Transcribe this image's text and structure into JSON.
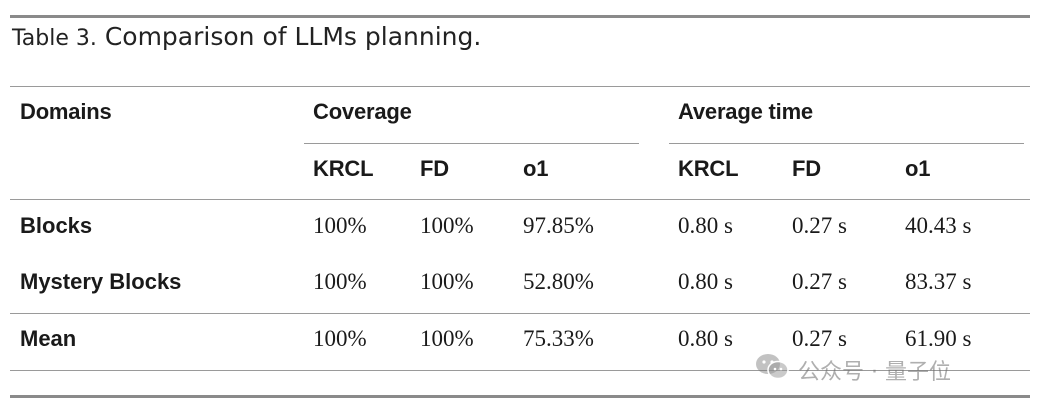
{
  "caption": {
    "label": "Table 3.",
    "text": "Comparison of LLMs planning."
  },
  "headers": {
    "domains": "Domains",
    "coverage": "Coverage",
    "average_time": "Average time",
    "sub": [
      "KRCL",
      "FD",
      "o1",
      "KRCL",
      "FD",
      "o1"
    ]
  },
  "rows": [
    {
      "domain": "Blocks",
      "values": [
        "100%",
        "100%",
        "97.85%",
        "0.80 s",
        "0.27 s",
        "40.43 s"
      ]
    },
    {
      "domain": "Mystery Blocks",
      "values": [
        "100%",
        "100%",
        "52.80%",
        "0.80 s",
        "0.27 s",
        "83.37 s"
      ]
    },
    {
      "domain": "Mean",
      "values": [
        "100%",
        "100%",
        "75.33%",
        "0.80 s",
        "0.27 s",
        "61.90 s"
      ]
    }
  ],
  "watermark": {
    "text": "公众号 · 量子位",
    "icon": "wechat-icon"
  }
}
